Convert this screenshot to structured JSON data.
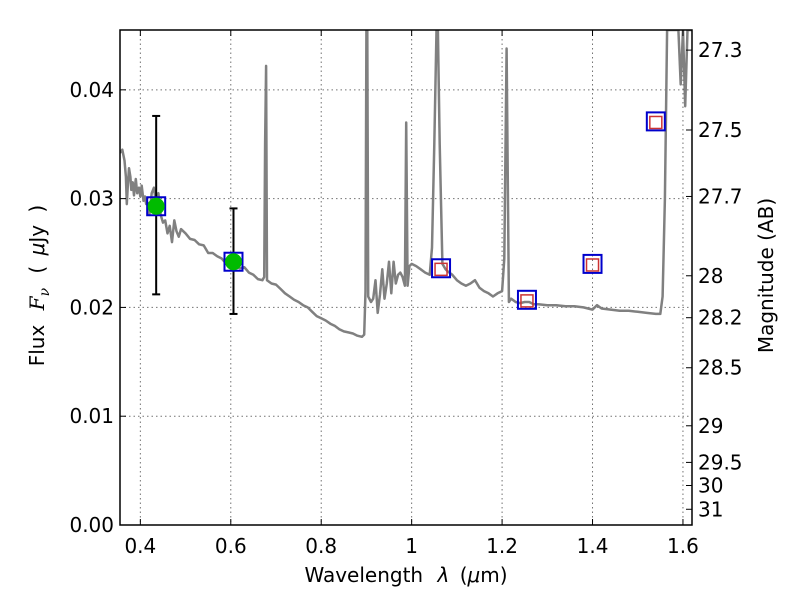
{
  "chart_data": {
    "type": "scatter",
    "xlabel": "Wavelength",
    "xlabel_symbol": "λ",
    "xlabel_unit_open": "(",
    "xlabel_unit_mu": "μ",
    "xlabel_unit_rest": "m)",
    "ylabel": "Flux",
    "ylabel_symbol": "F",
    "ylabel_subscript": "ν",
    "ylabel_unit_open": "(",
    "ylabel_unit_mu": "μ",
    "ylabel_unit_rest": "Jy",
    "ylabel_unit_close": ")",
    "y2label": "Magnitude (AB)",
    "xlim": [
      0.355,
      1.62
    ],
    "ylim": [
      0.0,
      0.0455
    ],
    "grid": true,
    "x_ticks": [
      {
        "value": 0.4,
        "label": "0.4"
      },
      {
        "value": 0.6,
        "label": "0.6"
      },
      {
        "value": 0.8,
        "label": "0.8"
      },
      {
        "value": 1.0,
        "label": "1"
      },
      {
        "value": 1.2,
        "label": "1.2"
      },
      {
        "value": 1.4,
        "label": "1.4"
      },
      {
        "value": 1.6,
        "label": "1.6"
      }
    ],
    "y_ticks": [
      {
        "value": 0.0,
        "label": "0.00"
      },
      {
        "value": 0.01,
        "label": "0.01"
      },
      {
        "value": 0.02,
        "label": "0.02"
      },
      {
        "value": 0.03,
        "label": "0.03"
      },
      {
        "value": 0.04,
        "label": "0.04"
      }
    ],
    "magnitude_ticks": [
      {
        "value": 27.3,
        "label": "27.3"
      },
      {
        "value": 27.5,
        "label": "27.5"
      },
      {
        "value": 27.7,
        "label": "27.7"
      },
      {
        "value": 28.0,
        "label": "28"
      },
      {
        "value": 28.2,
        "label": "28.2"
      },
      {
        "value": 28.5,
        "label": "28.5"
      },
      {
        "value": 29.0,
        "label": "29"
      },
      {
        "value": 29.5,
        "label": "29.5"
      },
      {
        "value": 30.0,
        "label": "30"
      },
      {
        "value": 31.0,
        "label": "31"
      }
    ],
    "series": [
      {
        "type": "line",
        "color": "#808080",
        "points": [
          [
            0.355,
            0.0342
          ],
          [
            0.36,
            0.0345
          ],
          [
            0.365,
            0.0335
          ],
          [
            0.368,
            0.032
          ],
          [
            0.37,
            0.0295
          ],
          [
            0.372,
            0.031
          ],
          [
            0.375,
            0.0328
          ],
          [
            0.378,
            0.032
          ],
          [
            0.38,
            0.0308
          ],
          [
            0.383,
            0.0315
          ],
          [
            0.386,
            0.0303
          ],
          [
            0.39,
            0.0318
          ],
          [
            0.393,
            0.0305
          ],
          [
            0.397,
            0.031
          ],
          [
            0.4,
            0.0302
          ],
          [
            0.403,
            0.0312
          ],
          [
            0.407,
            0.0298
          ],
          [
            0.41,
            0.0302
          ],
          [
            0.413,
            0.0295
          ],
          [
            0.417,
            0.0296
          ],
          [
            0.42,
            0.0285
          ],
          [
            0.425,
            0.0305
          ],
          [
            0.43,
            0.031
          ],
          [
            0.435,
            0.0295
          ],
          [
            0.44,
            0.0305
          ],
          [
            0.445,
            0.0285
          ],
          [
            0.45,
            0.0278
          ],
          [
            0.455,
            0.028
          ],
          [
            0.46,
            0.0268
          ],
          [
            0.465,
            0.0275
          ],
          [
            0.47,
            0.026
          ],
          [
            0.475,
            0.028
          ],
          [
            0.48,
            0.027
          ],
          [
            0.485,
            0.0265
          ],
          [
            0.49,
            0.0272
          ],
          [
            0.5,
            0.0268
          ],
          [
            0.51,
            0.0263
          ],
          [
            0.52,
            0.0262
          ],
          [
            0.53,
            0.0258
          ],
          [
            0.54,
            0.0257
          ],
          [
            0.55,
            0.025
          ],
          [
            0.56,
            0.025
          ],
          [
            0.57,
            0.0247
          ],
          [
            0.58,
            0.0245
          ],
          [
            0.59,
            0.024
          ],
          [
            0.6,
            0.024
          ],
          [
            0.61,
            0.0238
          ],
          [
            0.62,
            0.0236
          ],
          [
            0.63,
            0.0237
          ],
          [
            0.64,
            0.0232
          ],
          [
            0.65,
            0.023
          ],
          [
            0.66,
            0.0226
          ],
          [
            0.67,
            0.0225
          ],
          [
            0.674,
            0.0228
          ],
          [
            0.676,
            0.035
          ],
          [
            0.678,
            0.0422
          ],
          [
            0.68,
            0.0225
          ],
          [
            0.69,
            0.0222
          ],
          [
            0.7,
            0.0221
          ],
          [
            0.71,
            0.0217
          ],
          [
            0.72,
            0.0213
          ],
          [
            0.73,
            0.021
          ],
          [
            0.74,
            0.0207
          ],
          [
            0.75,
            0.0205
          ],
          [
            0.76,
            0.0202
          ],
          [
            0.77,
            0.02
          ],
          [
            0.78,
            0.0196
          ],
          [
            0.79,
            0.0192
          ],
          [
            0.8,
            0.019
          ],
          [
            0.81,
            0.0188
          ],
          [
            0.82,
            0.0185
          ],
          [
            0.83,
            0.0183
          ],
          [
            0.84,
            0.018
          ],
          [
            0.85,
            0.0178
          ],
          [
            0.86,
            0.0177
          ],
          [
            0.87,
            0.0176
          ],
          [
            0.88,
            0.0174
          ],
          [
            0.89,
            0.0173
          ],
          [
            0.895,
            0.0175
          ],
          [
            0.898,
            0.0215
          ],
          [
            0.9,
            0.0455
          ],
          [
            0.902,
            0.0455
          ],
          [
            0.904,
            0.021
          ],
          [
            0.91,
            0.0205
          ],
          [
            0.915,
            0.0208
          ],
          [
            0.92,
            0.0225
          ],
          [
            0.925,
            0.0195
          ],
          [
            0.93,
            0.0212
          ],
          [
            0.935,
            0.0235
          ],
          [
            0.94,
            0.0208
          ],
          [
            0.945,
            0.0222
          ],
          [
            0.95,
            0.0242
          ],
          [
            0.955,
            0.0213
          ],
          [
            0.96,
            0.0242
          ],
          [
            0.965,
            0.0222
          ],
          [
            0.97,
            0.023
          ],
          [
            0.975,
            0.0232
          ],
          [
            0.98,
            0.0228
          ],
          [
            0.985,
            0.022
          ],
          [
            0.988,
            0.037
          ],
          [
            0.991,
            0.022
          ],
          [
            0.995,
            0.0238
          ],
          [
            1.0,
            0.024
          ],
          [
            1.01,
            0.0238
          ],
          [
            1.02,
            0.0235
          ],
          [
            1.03,
            0.0232
          ],
          [
            1.04,
            0.023
          ],
          [
            1.045,
            0.0255
          ],
          [
            1.05,
            0.035
          ],
          [
            1.055,
            0.0455
          ],
          [
            1.058,
            0.0455
          ],
          [
            1.062,
            0.035
          ],
          [
            1.068,
            0.024
          ],
          [
            1.075,
            0.0235
          ],
          [
            1.08,
            0.0233
          ],
          [
            1.09,
            0.023
          ],
          [
            1.1,
            0.0225
          ],
          [
            1.11,
            0.0222
          ],
          [
            1.12,
            0.022
          ],
          [
            1.13,
            0.0222
          ],
          [
            1.14,
            0.0225
          ],
          [
            1.15,
            0.0218
          ],
          [
            1.16,
            0.0215
          ],
          [
            1.17,
            0.0213
          ],
          [
            1.18,
            0.021
          ],
          [
            1.19,
            0.0213
          ],
          [
            1.2,
            0.0215
          ],
          [
            1.205,
            0.0245
          ],
          [
            1.21,
            0.0438
          ],
          [
            1.215,
            0.0205
          ],
          [
            1.22,
            0.0208
          ],
          [
            1.23,
            0.0205
          ],
          [
            1.24,
            0.0204
          ],
          [
            1.25,
            0.0205
          ],
          [
            1.26,
            0.0205
          ],
          [
            1.27,
            0.0203
          ],
          [
            1.28,
            0.0203
          ],
          [
            1.3,
            0.0202
          ],
          [
            1.32,
            0.0202
          ],
          [
            1.34,
            0.0201
          ],
          [
            1.36,
            0.0201
          ],
          [
            1.38,
            0.02
          ],
          [
            1.4,
            0.0198
          ],
          [
            1.41,
            0.0202
          ],
          [
            1.42,
            0.0199
          ],
          [
            1.44,
            0.0198
          ],
          [
            1.46,
            0.0197
          ],
          [
            1.48,
            0.0197
          ],
          [
            1.5,
            0.0196
          ],
          [
            1.52,
            0.0195
          ],
          [
            1.54,
            0.0194
          ],
          [
            1.55,
            0.0194
          ],
          [
            1.555,
            0.021
          ],
          [
            1.56,
            0.03
          ],
          [
            1.565,
            0.0455
          ],
          [
            1.59,
            0.0455
          ],
          [
            1.595,
            0.0405
          ],
          [
            1.6,
            0.0455
          ],
          [
            1.605,
            0.0385
          ],
          [
            1.61,
            0.0455
          ],
          [
            1.62,
            0.0455
          ]
        ]
      },
      {
        "type": "errorbar",
        "color": "#000000",
        "points": [
          {
            "x": 0.435,
            "ylow": 0.0212,
            "yhigh": 0.0376
          },
          {
            "x": 0.606,
            "ylow": 0.0194,
            "yhigh": 0.0291
          }
        ]
      },
      {
        "type": "scatter",
        "marker": "square",
        "color": "#0000cc",
        "points": [
          [
            0.435,
            0.0293
          ],
          [
            0.606,
            0.0242
          ],
          [
            1.065,
            0.0236
          ],
          [
            1.255,
            0.0207
          ],
          [
            1.4,
            0.024
          ],
          [
            1.54,
            0.0371
          ]
        ]
      },
      {
        "type": "scatter",
        "marker": "square",
        "color": "#cc3333",
        "points": [
          [
            1.065,
            0.0235
          ],
          [
            1.255,
            0.0206
          ],
          [
            1.4,
            0.0239
          ],
          [
            1.54,
            0.037
          ]
        ]
      },
      {
        "type": "scatter",
        "marker": "circle",
        "color": "#00bb00",
        "points": [
          [
            0.435,
            0.0293
          ],
          [
            0.606,
            0.0242
          ]
        ]
      }
    ]
  }
}
